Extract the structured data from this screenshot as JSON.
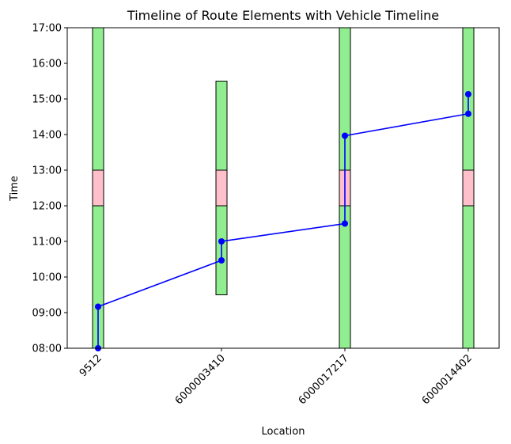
{
  "chart_data": {
    "type": "timeline",
    "title": "Timeline of Route Elements with Vehicle Timeline",
    "xlabel": "Location",
    "ylabel": "Time",
    "categories": [
      "9512",
      "6000003410",
      "6000017217",
      "6000014402"
    ],
    "ylim": [
      "08:00",
      "17:00"
    ],
    "yticks": [
      "08:00",
      "09:00",
      "10:00",
      "11:00",
      "12:00",
      "13:00",
      "14:00",
      "15:00",
      "16:00",
      "17:00"
    ],
    "time_windows": [
      {
        "location": "9512",
        "start": "08:00",
        "end": "17:00",
        "color": "#90ee90"
      },
      {
        "location": "6000003410",
        "start": "09:30",
        "end": "15:30",
        "color": "#90ee90"
      },
      {
        "location": "6000017217",
        "start": "08:00",
        "end": "17:00",
        "color": "#90ee90"
      },
      {
        "location": "6000014402",
        "start": "08:00",
        "end": "17:00",
        "color": "#90ee90"
      }
    ],
    "breaks": [
      {
        "location": "9512",
        "start": "12:00",
        "end": "13:00",
        "color": "#ffc0cb"
      },
      {
        "location": "6000003410",
        "start": "12:00",
        "end": "13:00",
        "color": "#ffc0cb"
      },
      {
        "location": "6000017217",
        "start": "12:00",
        "end": "13:00",
        "color": "#ffc0cb"
      },
      {
        "location": "6000014402",
        "start": "12:00",
        "end": "13:00",
        "color": "#ffc0cb"
      }
    ],
    "vehicle_timeline": {
      "color": "#0000ff",
      "points": [
        {
          "location": "9512",
          "time": "08:00"
        },
        {
          "location": "9512",
          "time": "09:10"
        },
        {
          "location": "6000003410",
          "time": "10:28"
        },
        {
          "location": "6000003410",
          "time": "11:00"
        },
        {
          "location": "6000017217",
          "time": "11:30"
        },
        {
          "location": "6000017217",
          "time": "13:58"
        },
        {
          "location": "6000014402",
          "time": "14:35"
        },
        {
          "location": "6000014402",
          "time": "15:08"
        }
      ]
    },
    "grid": false,
    "legend": "none"
  }
}
